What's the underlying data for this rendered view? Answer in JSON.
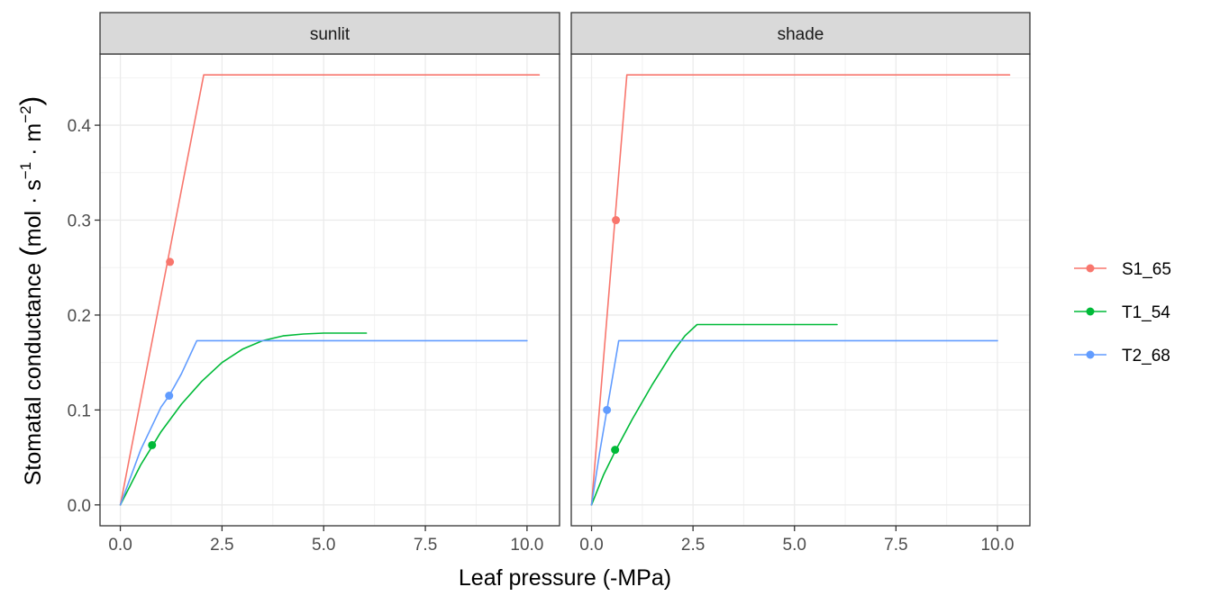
{
  "chart_data": {
    "type": "line",
    "xlabel": "Leaf pressure (-MPa)",
    "ylabel": "Stomatal conductance",
    "ylabel_unit": {
      "open": "(",
      "mol": "mol",
      "s": "s",
      "s_exp": "−1",
      "m": "m",
      "m_exp": "−2",
      "close": ")"
    },
    "xlim": [
      -0.5,
      10.8
    ],
    "ylim": [
      -0.022,
      0.475
    ],
    "x_ticks": [
      0,
      2.5,
      5,
      7.5,
      10
    ],
    "x_tick_labels": [
      "0.0",
      "2.5",
      "5.0",
      "7.5",
      "10.0"
    ],
    "y_ticks": [
      0,
      0.1,
      0.2,
      0.3,
      0.4
    ],
    "y_tick_labels": [
      "0.0",
      "0.1",
      "0.2",
      "0.3",
      "0.4"
    ],
    "grid": true,
    "legend_position": "right",
    "series_order": [
      "S1_65",
      "T1_54",
      "T2_68"
    ],
    "colors": {
      "S1_65": "#F8766D",
      "T1_54": "#00BA38",
      "T2_68": "#619CFF"
    },
    "panels": [
      {
        "name": "sunlit",
        "series": [
          {
            "name": "S1_65",
            "x": [
              0.0,
              2.05,
              10.3
            ],
            "y": [
              0.0,
              0.453,
              0.453
            ],
            "point": [
              1.22,
              0.256
            ]
          },
          {
            "name": "T1_54",
            "x": [
              0.0,
              0.5,
              0.8,
              1.0,
              1.5,
              2.0,
              2.5,
              3.0,
              3.5,
              4.0,
              4.5,
              5.0,
              5.5,
              6.05
            ],
            "y": [
              0.0,
              0.042,
              0.063,
              0.077,
              0.106,
              0.13,
              0.15,
              0.164,
              0.173,
              0.178,
              0.18,
              0.181,
              0.181,
              0.181
            ],
            "point": [
              0.78,
              0.063
            ]
          },
          {
            "name": "T2_68",
            "x": [
              0.0,
              0.5,
              1.0,
              1.2,
              1.5,
              1.88,
              10.0
            ],
            "y": [
              0.0,
              0.058,
              0.103,
              0.115,
              0.138,
              0.173,
              0.173
            ],
            "point": [
              1.2,
              0.115
            ]
          }
        ]
      },
      {
        "name": "shade",
        "series": [
          {
            "name": "S1_65",
            "x": [
              0.0,
              0.87,
              10.3
            ],
            "y": [
              0.0,
              0.453,
              0.453
            ],
            "point": [
              0.6,
              0.3
            ]
          },
          {
            "name": "T1_54",
            "x": [
              0.0,
              0.3,
              0.6,
              1.0,
              1.5,
              2.0,
              2.3,
              2.6,
              6.05
            ],
            "y": [
              0.0,
              0.032,
              0.058,
              0.09,
              0.127,
              0.161,
              0.178,
              0.19,
              0.19
            ],
            "point": [
              0.58,
              0.058
            ]
          },
          {
            "name": "T2_68",
            "x": [
              0.0,
              0.2,
              0.38,
              0.5,
              0.67,
              10.0
            ],
            "y": [
              0.0,
              0.055,
              0.1,
              0.13,
              0.173,
              0.173
            ],
            "point": [
              0.38,
              0.1
            ]
          }
        ]
      }
    ]
  }
}
